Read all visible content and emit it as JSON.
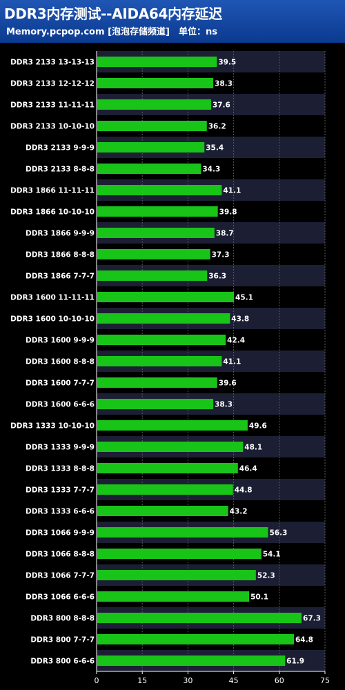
{
  "header": {
    "title": "DDR3内存测试--AIDA64内存延迟",
    "subtitle": "Memory.pcpop.com [泡泡存储频道]　单位：ns"
  },
  "colors": {
    "header_bg": "#1f56b4",
    "bar": "#19c419",
    "band": "#1c1f33",
    "grid": "#5a5a5a"
  },
  "chart_data": {
    "type": "bar",
    "orientation": "horizontal",
    "title": "DDR3内存测试--AIDA64内存延迟",
    "subtitle": "Memory.pcpop.com [泡泡存储频道]　单位：ns",
    "categories": [
      "DDR3 2133 13-13-13",
      "DDR3 2133 12-12-12",
      "DDR3 2133 11-11-11",
      "DDR3 2133 10-10-10",
      "DDR3 2133 9-9-9",
      "DDR3 2133 8-8-8",
      "DDR3 1866 11-11-11",
      "DDR3 1866 10-10-10",
      "DDR3 1866 9-9-9",
      "DDR3 1866 8-8-8",
      "DDR3 1866 7-7-7",
      "DDR3 1600 11-11-11",
      "DDR3 1600 10-10-10",
      "DDR3 1600 9-9-9",
      "DDR3 1600 8-8-8",
      "DDR3 1600 7-7-7",
      "DDR3 1600 6-6-6",
      "DDR3 1333 10-10-10",
      "DDR3 1333 9-9-9",
      "DDR3 1333 8-8-8",
      "DDR3 1333 7-7-7",
      "DDR3 1333 6-6-6",
      "DDR3 1066 9-9-9",
      "DDR3 1066 8-8-8",
      "DDR3 1066 7-7-7",
      "DDR3 1066 6-6-6",
      "DDR3 800 8-8-8",
      "DDR3 800 7-7-7",
      "DDR3 800 6-6-6"
    ],
    "values": [
      39.5,
      38.3,
      37.6,
      36.2,
      35.4,
      34.3,
      41.1,
      39.8,
      38.7,
      37.3,
      36.3,
      45.1,
      43.8,
      42.4,
      41.1,
      39.6,
      38.3,
      49.6,
      48.1,
      46.4,
      44.8,
      43.2,
      56.3,
      54.1,
      52.3,
      50.1,
      67.3,
      64.8,
      61.9
    ],
    "xlim": [
      0,
      75
    ],
    "xticks": [
      0,
      15,
      30,
      45,
      60,
      75
    ],
    "grid": true,
    "legend": "none"
  }
}
